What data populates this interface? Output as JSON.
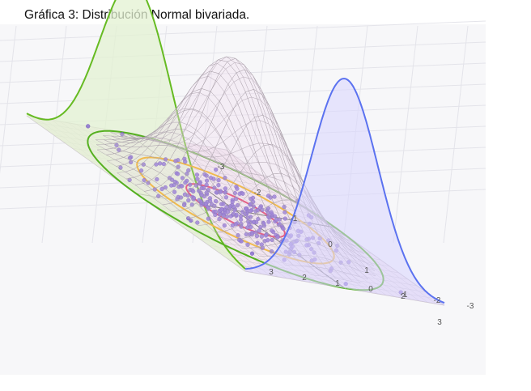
{
  "caption": "Gráfica 3: Distribución Normal bivariada.",
  "chart_data": {
    "type": "surface",
    "distribution": "standard bivariate normal, mean (0,0), identity covariance",
    "x_ticks": [
      "-3",
      "-2",
      "-1",
      "0",
      "1",
      "2",
      "3"
    ],
    "y_ticks": [
      "3",
      "2",
      "1",
      "0",
      "-1",
      "-2",
      "-3"
    ],
    "xlim": [
      -3,
      3
    ],
    "ylim": [
      -3,
      3
    ],
    "grid": true,
    "contour_radii": [
      1,
      2,
      3
    ],
    "sample_points": 300,
    "colors": {
      "surface_mesh": "#a8a0a8",
      "surface_fill": "#f2dff0",
      "marginal_x_curve": "#66bb22",
      "marginal_x_fill": "#e3f1d2",
      "marginal_y_curve": "#5b72f0",
      "marginal_y_fill": "#d8d6ff",
      "contour_1": "#e0406a",
      "contour_2": "#f0b020",
      "contour_3": "#55b020",
      "points": "#8a6fd0",
      "floor_fill": "#f3e8f0"
    }
  }
}
